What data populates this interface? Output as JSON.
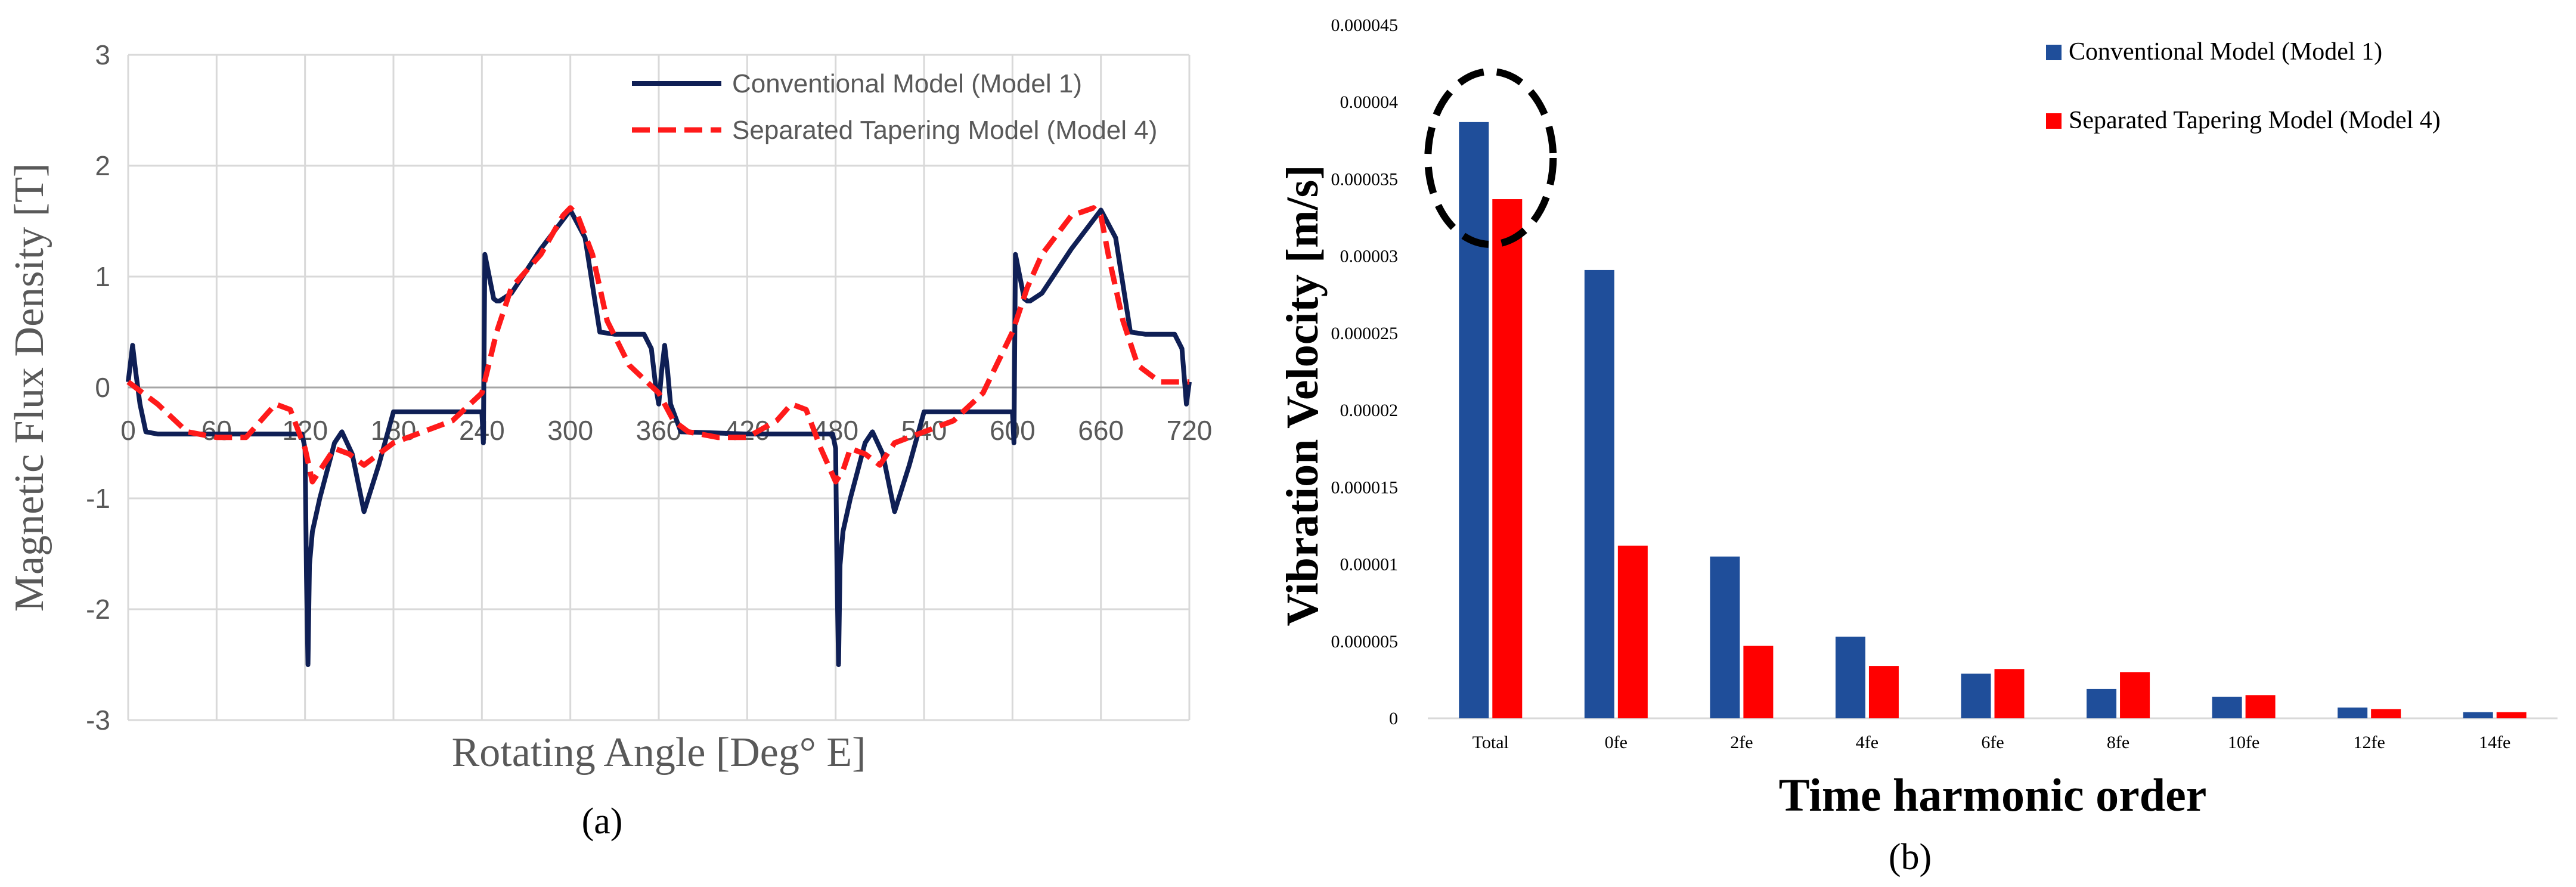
{
  "figure": {
    "panel_a_label": "(a)",
    "panel_b_label": "(b)"
  },
  "colors": {
    "model1": "#0f1f55",
    "model4_line": "#ff1a1a",
    "bar_model1": "#1f4e9a",
    "bar_model4": "#ff0000",
    "grid": "#d9d9d9",
    "text": "#595959"
  },
  "chart_data": [
    {
      "type": "line",
      "xlabel": "Rotating Angle [Deg° E]",
      "ylabel": "Magnetic Flux Density [T]",
      "xlim": [
        0,
        720
      ],
      "ylim": [
        -3,
        3
      ],
      "xticks": [
        0,
        60,
        120,
        180,
        240,
        300,
        360,
        420,
        480,
        540,
        600,
        660,
        720
      ],
      "yticks": [
        -3,
        -2,
        -1,
        0,
        1,
        2,
        3
      ],
      "grid": true,
      "legend_position": "top-right",
      "series": [
        {
          "name": "Conventional Model (Model 1)",
          "style": "solid",
          "x": [
            0,
            3,
            5,
            8,
            12,
            20,
            60,
            100,
            118,
            120,
            121,
            122,
            123,
            125,
            130,
            140,
            145,
            152,
            160,
            170,
            180,
            240,
            241,
            242,
            248,
            250,
            252,
            260,
            280,
            300,
            310,
            320,
            330,
            350,
            355,
            358,
            360,
            362,
            364,
            366,
            368,
            375,
            420,
            478,
            480,
            481,
            482,
            483,
            485,
            490,
            500,
            505,
            512,
            520,
            530,
            540,
            600,
            601,
            602,
            608,
            610,
            612,
            620,
            640,
            660,
            670,
            680,
            690,
            710,
            715,
            718,
            720
          ],
          "y": [
            0.05,
            0.38,
            0.15,
            -0.15,
            -0.4,
            -0.42,
            -0.42,
            -0.42,
            -0.42,
            -0.55,
            -1.7,
            -2.5,
            -1.6,
            -1.3,
            -1.0,
            -0.5,
            -0.4,
            -0.6,
            -1.12,
            -0.7,
            -0.22,
            -0.22,
            -0.5,
            1.2,
            0.8,
            0.78,
            0.78,
            0.85,
            1.25,
            1.6,
            1.35,
            0.5,
            0.48,
            0.48,
            0.35,
            0.0,
            -0.15,
            0.15,
            0.38,
            0.15,
            -0.15,
            -0.4,
            -0.42,
            -0.42,
            -0.55,
            -1.7,
            -2.5,
            -1.6,
            -1.3,
            -1.0,
            -0.5,
            -0.4,
            -0.6,
            -1.12,
            -0.7,
            -0.22,
            -0.22,
            -0.5,
            1.2,
            0.8,
            0.78,
            0.78,
            0.85,
            1.25,
            1.6,
            1.35,
            0.5,
            0.48,
            0.48,
            0.35,
            -0.15,
            0.05
          ]
        },
        {
          "name": "Separated Tapering Model (Model 4)",
          "style": "dashed",
          "x": [
            0,
            10,
            20,
            40,
            60,
            80,
            90,
            100,
            110,
            120,
            125,
            130,
            140,
            150,
            160,
            180,
            200,
            220,
            240,
            250,
            260,
            280,
            295,
            300,
            305,
            315,
            325,
            340,
            360,
            370,
            380,
            400,
            420,
            440,
            450,
            460,
            470,
            480,
            485,
            490,
            500,
            510,
            520,
            540,
            560,
            580,
            600,
            610,
            620,
            640,
            655,
            660,
            665,
            675,
            685,
            700,
            720
          ],
          "y": [
            0.05,
            -0.05,
            -0.15,
            -0.4,
            -0.45,
            -0.45,
            -0.3,
            -0.15,
            -0.2,
            -0.55,
            -0.85,
            -0.75,
            -0.55,
            -0.6,
            -0.7,
            -0.5,
            -0.4,
            -0.3,
            -0.05,
            0.5,
            0.9,
            1.2,
            1.55,
            1.62,
            1.55,
            1.2,
            0.6,
            0.2,
            -0.05,
            -0.3,
            -0.4,
            -0.45,
            -0.45,
            -0.3,
            -0.15,
            -0.2,
            -0.55,
            -0.85,
            -0.75,
            -0.55,
            -0.6,
            -0.7,
            -0.5,
            -0.4,
            -0.3,
            -0.05,
            0.5,
            0.9,
            1.2,
            1.55,
            1.62,
            1.55,
            1.2,
            0.6,
            0.2,
            0.05,
            0.05
          ]
        }
      ]
    },
    {
      "type": "bar",
      "xlabel": "Time harmonic order",
      "ylabel": "Vibration Velocity [m/s]",
      "ylim": [
        0,
        4.5e-05
      ],
      "yticks": [
        "0",
        "0.000005",
        "0.00001",
        "0.000015",
        "0.00002",
        "0.000025",
        "0.00003",
        "0.000035",
        "0.00004",
        "0.000045"
      ],
      "grid": false,
      "legend_position": "top-right",
      "categories": [
        "Total",
        "0fe",
        "2fe",
        "4fe",
        "6fe",
        "8fe",
        "10fe",
        "12fe",
        "14fe"
      ],
      "series": [
        {
          "name": "Conventional Model (Model 1)",
          "values": [
            3.87e-05,
            2.91e-05,
            1.05e-05,
            5.3e-06,
            2.9e-06,
            1.9e-06,
            1.4e-06,
            7e-07,
            4e-07
          ]
        },
        {
          "name": "Separated Tapering Model (Model 4)",
          "values": [
            3.37e-05,
            1.12e-05,
            4.7e-06,
            3.4e-06,
            3.2e-06,
            3e-06,
            1.5e-06,
            6e-07,
            4e-07
          ]
        }
      ],
      "annotation": {
        "shape": "dashed-ellipse",
        "target_category": "Total"
      }
    }
  ]
}
